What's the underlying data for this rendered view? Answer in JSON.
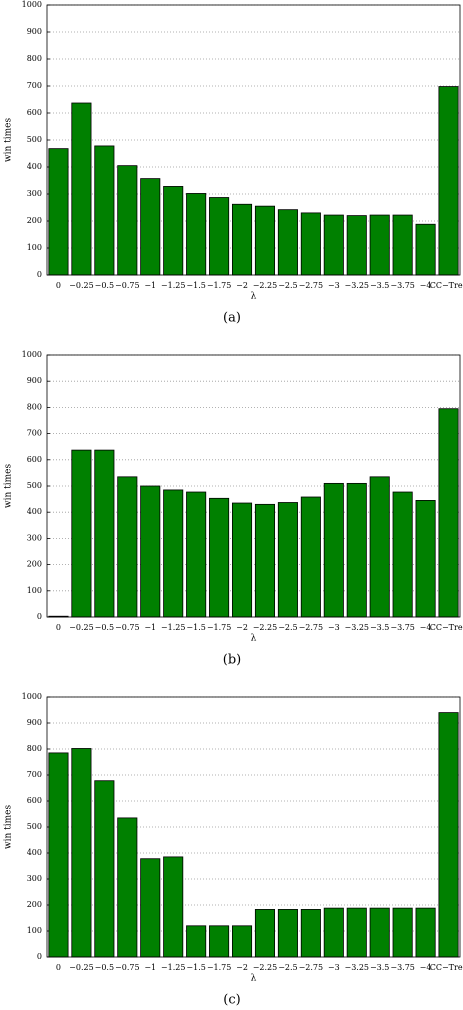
{
  "chart_data": [
    {
      "type": "bar",
      "caption": "(a)",
      "x_label": "λ",
      "y_label": "win times",
      "categories": [
        "0",
        "−0.25",
        "−0.5",
        "−0.75",
        "−1",
        "−1.25",
        "−1.5",
        "−1.75",
        "−2",
        "−2.25",
        "−2.5",
        "−2.75",
        "−3",
        "−3.25",
        "−3.5",
        "−3.75",
        "−4",
        "CC−Tree"
      ],
      "values": [
        468,
        637,
        478,
        405,
        357,
        328,
        302,
        287,
        262,
        255,
        242,
        230,
        222,
        220,
        222,
        222,
        188,
        698
      ],
      "color": "#008000",
      "ylim": [
        0,
        1000
      ],
      "yticks": [
        0,
        100,
        200,
        300,
        400,
        500,
        600,
        700,
        800,
        900,
        1000
      ],
      "grid": true
    },
    {
      "type": "bar",
      "caption": "(b)",
      "x_label": "λ",
      "y_label": "win times",
      "categories": [
        "0",
        "−0.25",
        "−0.5",
        "−0.75",
        "−1",
        "−1.25",
        "−1.5",
        "−1.75",
        "−2",
        "−2.25",
        "−2.5",
        "−2.75",
        "−3",
        "−3.25",
        "−3.5",
        "−3.75",
        "−4",
        "CC−Tree"
      ],
      "values": [
        3,
        637,
        637,
        535,
        500,
        485,
        477,
        453,
        435,
        430,
        437,
        458,
        510,
        510,
        535,
        477,
        445,
        795
      ],
      "color": "#008000",
      "ylim": [
        0,
        1000
      ],
      "yticks": [
        0,
        100,
        200,
        300,
        400,
        500,
        600,
        700,
        800,
        900,
        1000
      ],
      "grid": true
    },
    {
      "type": "bar",
      "caption": "(c)",
      "x_label": "λ",
      "y_label": "win times",
      "categories": [
        "0",
        "−0.25",
        "−0.5",
        "−0.75",
        "−1",
        "−1.25",
        "−1.5",
        "−1.75",
        "−2",
        "−2.25",
        "−2.5",
        "−2.75",
        "−3",
        "−3.25",
        "−3.5",
        "−3.75",
        "−4",
        "CC−Tree"
      ],
      "values": [
        785,
        802,
        678,
        535,
        378,
        385,
        120,
        120,
        120,
        183,
        183,
        183,
        188,
        188,
        188,
        188,
        188,
        940
      ],
      "color": "#008000",
      "ylim": [
        0,
        1000
      ],
      "yticks": [
        0,
        100,
        200,
        300,
        400,
        500,
        600,
        700,
        800,
        900,
        1000
      ],
      "grid": true
    }
  ]
}
